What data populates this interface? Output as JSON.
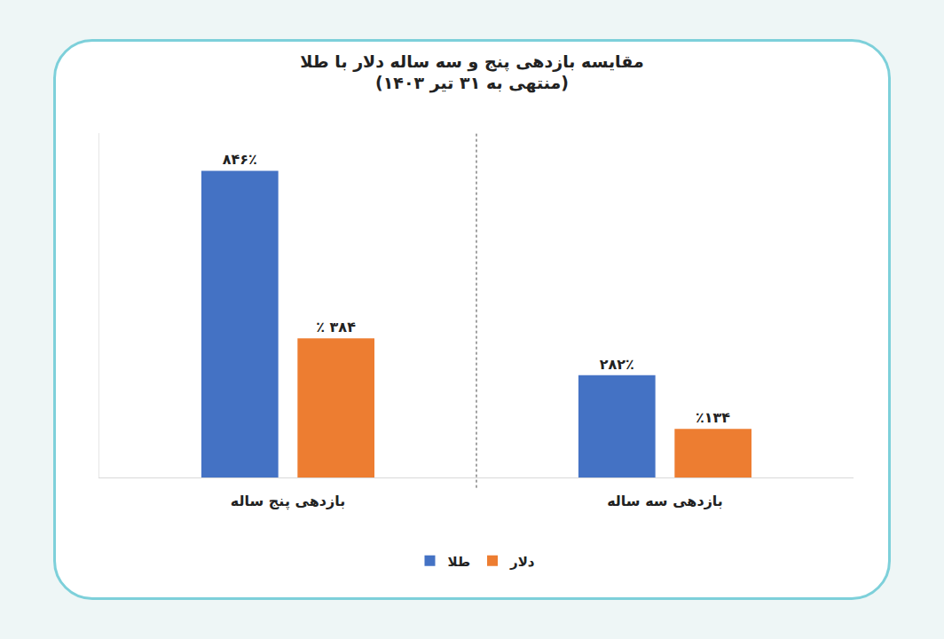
{
  "chart_data": {
    "type": "bar",
    "title": "مقایسه بازدهی پنج و سه ساله دلار با طلا",
    "subtitle": "(منتهی به ۳۱ تیر ۱۴۰۳)",
    "categories": [
      "بازدهی پنج ساله",
      "بازدهی سه ساله"
    ],
    "series": [
      {
        "name": "طلا",
        "color": "#4472c4",
        "values": [
          846,
          282
        ],
        "value_labels": [
          "۸۴۶٪",
          "۲۸۲٪"
        ]
      },
      {
        "name": "دلار",
        "color": "#ed7d31",
        "values": [
          384,
          134
        ],
        "value_labels": [
          "٪ ۳۸۴",
          "٪۱۳۴"
        ]
      }
    ],
    "ylim": [
      0,
      950
    ],
    "grid": false,
    "legend": "bottom",
    "data_labels": true,
    "tick_labels": "x"
  }
}
